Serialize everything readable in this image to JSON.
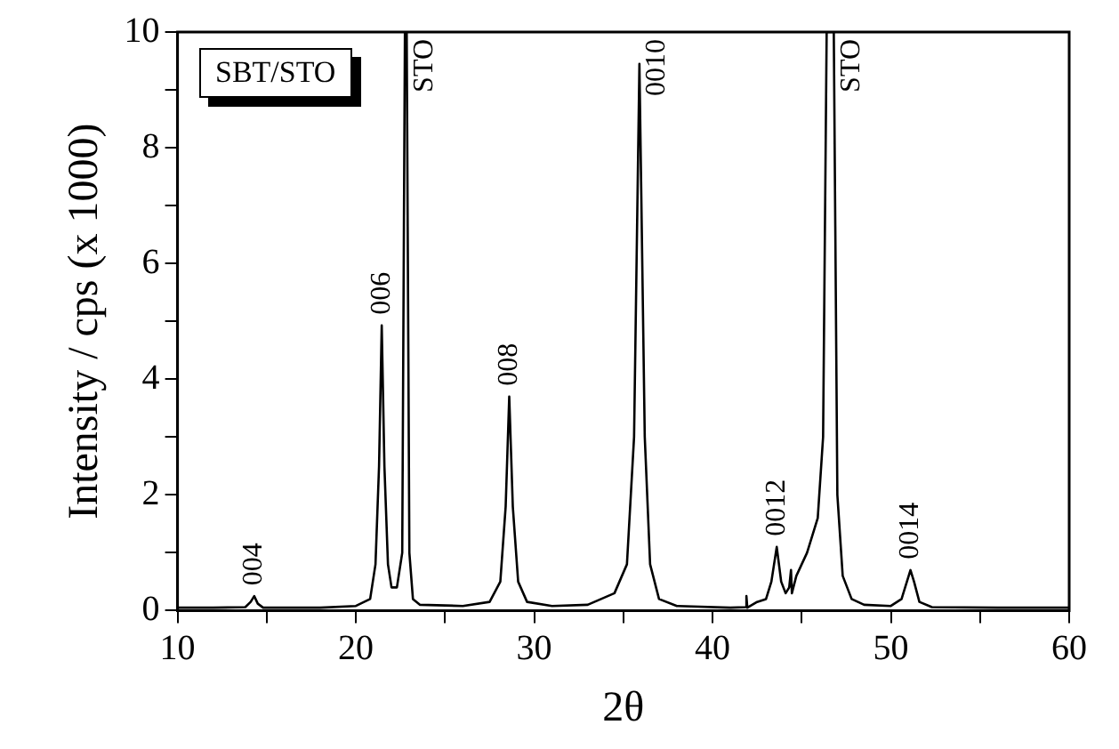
{
  "chart_data": {
    "type": "line",
    "xlabel": "2θ",
    "ylabel": "Intensity / cps (x 1000)",
    "x": [
      10,
      12,
      13.8,
      14.1,
      14.3,
      14.5,
      14.8,
      18,
      20,
      20.8,
      21.1,
      21.3,
      21.45,
      21.6,
      21.8,
      22.0,
      22.3,
      22.6,
      22.75,
      22.85,
      23.0,
      23.2,
      23.6,
      26,
      27.5,
      28.1,
      28.4,
      28.6,
      28.8,
      29.1,
      29.6,
      31,
      33,
      34.5,
      35.2,
      35.6,
      35.9,
      36.2,
      36.5,
      37,
      38,
      41,
      41.85,
      41.9,
      41.95,
      42.5,
      43.0,
      43.3,
      43.6,
      43.85,
      44.1,
      44.3,
      44.4,
      44.45,
      44.7,
      45.3,
      45.9,
      46.2,
      46.4,
      46.8,
      47.0,
      47.3,
      47.8,
      48.5,
      50,
      50.6,
      50.9,
      51.1,
      51.3,
      51.6,
      52.3,
      56,
      60
    ],
    "series": [
      {
        "color": "#000000",
        "values": [
          0.05,
          0.05,
          0.06,
          0.15,
          0.25,
          0.12,
          0.05,
          0.05,
          0.08,
          0.2,
          0.8,
          2.5,
          4.93,
          2.5,
          0.8,
          0.4,
          0.4,
          1.0,
          10,
          10,
          1.0,
          0.2,
          0.1,
          0.08,
          0.15,
          0.5,
          1.8,
          3.7,
          1.8,
          0.5,
          0.15,
          0.08,
          0.1,
          0.3,
          0.8,
          3,
          9.45,
          3,
          0.8,
          0.2,
          0.08,
          0.05,
          0.06,
          0.25,
          0.05,
          0.15,
          0.2,
          0.5,
          1.1,
          0.5,
          0.3,
          0.4,
          0.7,
          0.3,
          0.6,
          1.0,
          1.6,
          3,
          10,
          10,
          2,
          0.6,
          0.2,
          0.1,
          0.08,
          0.2,
          0.5,
          0.7,
          0.5,
          0.15,
          0.06,
          0.05,
          0.05
        ]
      }
    ],
    "xlim": [
      10,
      60
    ],
    "ylim": [
      0,
      10
    ],
    "xticks": [
      10,
      {
        "value": 15,
        "label": null
      },
      20,
      {
        "value": 25,
        "label": null
      },
      30,
      {
        "value": 35,
        "label": null
      },
      40,
      {
        "value": 45,
        "label": null
      },
      50,
      {
        "value": 55,
        "label": null
      },
      60
    ],
    "yticks": [
      0,
      {
        "value": 1,
        "label": null
      },
      2,
      {
        "value": 3,
        "label": null
      },
      4,
      {
        "value": 5,
        "label": null
      },
      6,
      {
        "value": 7,
        "label": null
      },
      8,
      {
        "value": 9,
        "label": null
      },
      10
    ],
    "grid": false,
    "legend": false,
    "marker": "none",
    "line_style": "solid",
    "annotations": [
      "SBT/STO",
      {
        "text": "004",
        "x": 14.3,
        "y": 0.25
      },
      {
        "text": "006",
        "x": 21.45,
        "y": 4.93
      },
      {
        "text": "STO",
        "x": 22.85,
        "y": 10
      },
      {
        "text": "008",
        "x": 28.6,
        "y": 3.7
      },
      {
        "text": "0010",
        "x": 35.9,
        "y": 9.45
      },
      {
        "text": "0012",
        "x": 43.6,
        "y": 1.1
      },
      {
        "text": "STO",
        "x": 46.8,
        "y": 10
      },
      {
        "text": "0014",
        "x": 51.1,
        "y": 0.7
      }
    ]
  }
}
